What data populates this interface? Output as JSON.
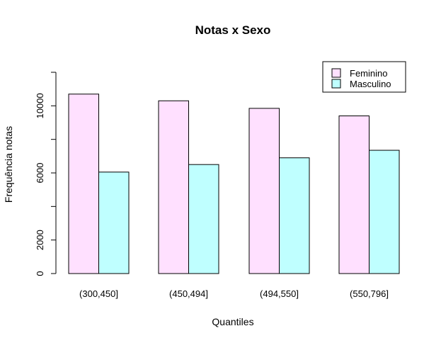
{
  "chart_data": {
    "type": "bar",
    "title": "Notas x Sexo",
    "xlabel": "Quantiles",
    "ylabel": "Frequência notas",
    "categories": [
      "(300,450]",
      "(450,494]",
      "(494,550]",
      "(550,796]"
    ],
    "series": [
      {
        "name": "Feminino",
        "color": "#FFE0FF",
        "values": [
          10700,
          10300,
          9850,
          9400
        ]
      },
      {
        "name": "Masculino",
        "color": "#BFFFFF",
        "values": [
          6050,
          6500,
          6900,
          7350
        ]
      }
    ],
    "ylim": [
      0,
      12000
    ],
    "yticks_labeled": [
      0,
      2000,
      6000,
      10000
    ],
    "yticks_all": [
      0,
      2000,
      4000,
      6000,
      8000,
      10000,
      12000
    ],
    "legend_position": "top-right",
    "grid": false
  }
}
